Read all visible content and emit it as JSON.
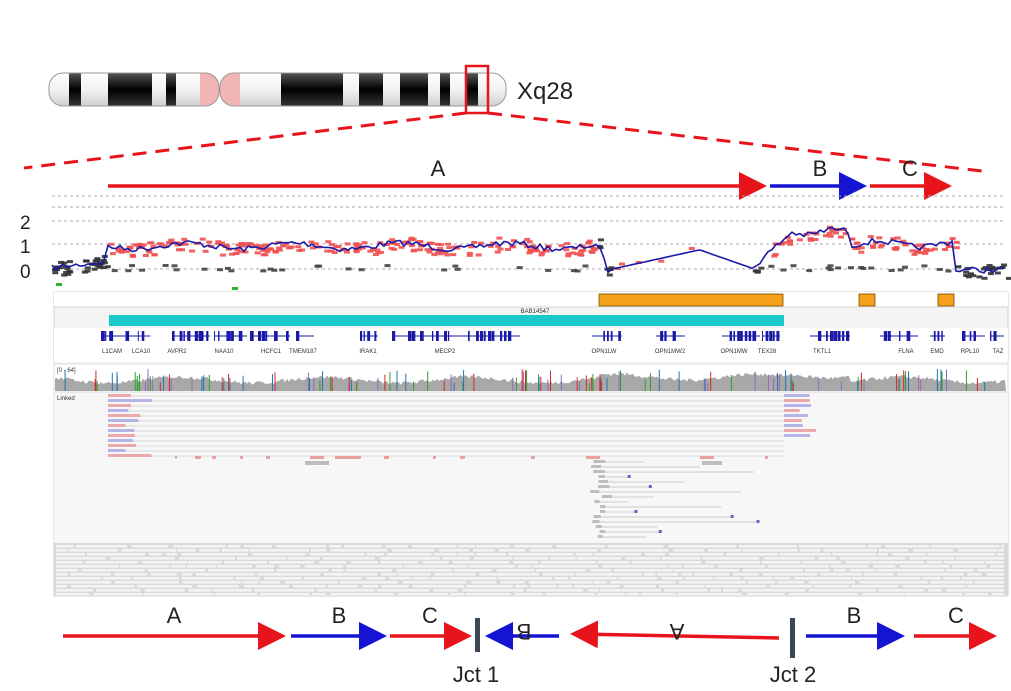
{
  "ideogram": {
    "band_label": "Xq28"
  },
  "top_segments": [
    {
      "label": "A",
      "color": "#e8141c"
    },
    {
      "label": "B",
      "color": "#1414d2"
    },
    {
      "label": "C",
      "color": "#e8141c"
    }
  ],
  "cn_axis": {
    "ticks": [
      "2",
      "1",
      "0"
    ]
  },
  "track_panel": {
    "region_label": "BAB14547",
    "genes": [
      "L1CAM",
      "LCA10",
      "AVPR2",
      "NAA10",
      "HCFC1",
      "TMEM187",
      "IRAK1",
      "MECP2",
      "OPN1LW",
      "OPN1MW2",
      "OPN1MW",
      "TEX28",
      "TKTL1",
      "FLNA",
      "EMD",
      "RPL10",
      "TAZ"
    ],
    "coverage_range": "[0 - 64]",
    "linked_label": "Linked"
  },
  "bottom_segments": [
    {
      "label": "A",
      "color": "#e8141c"
    },
    {
      "label": "B",
      "color": "#1414d2"
    },
    {
      "label": "C",
      "color": "#e8141c"
    },
    {
      "label": "B",
      "color": "#1414d2"
    },
    {
      "label": "A",
      "color": "#e8141c"
    },
    {
      "label": "B",
      "color": "#1414d2"
    },
    {
      "label": "C",
      "color": "#e8141c"
    }
  ],
  "junctions": [
    "Jct 1",
    "Jct 2"
  ],
  "colors": {
    "red_points": "#f05050",
    "blue_line": "#1a1aa8",
    "orange_block": "#f5a01a",
    "teal_bar": "#19c8c8",
    "gene_blue": "#1a1aa8",
    "junction_bar": "#3c4655"
  }
}
